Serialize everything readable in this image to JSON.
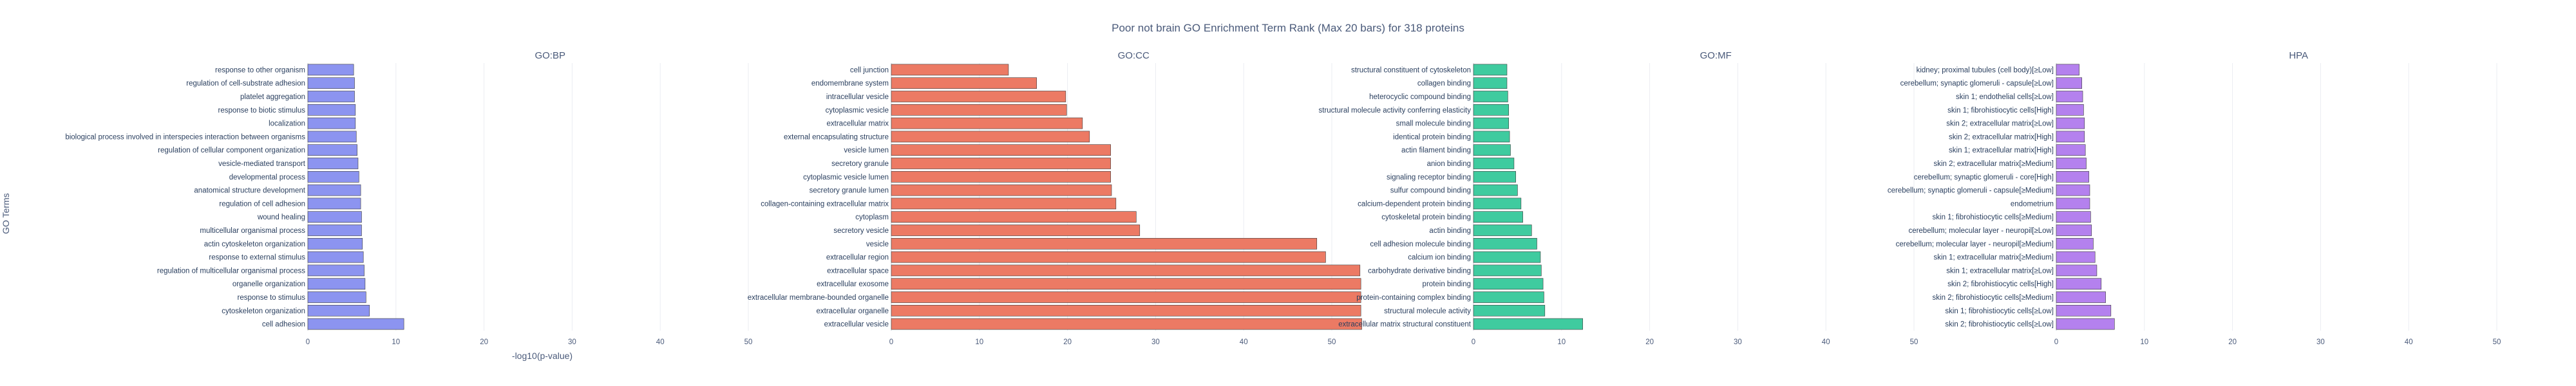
{
  "chart_data": {
    "type": "bar",
    "orientation": "horizontal",
    "title": "Poor not brain GO Enrichment Term Rank (Max 20 bars) for 318 proteins",
    "xlabel": "-log10(p-value)",
    "ylabel": "GO Terms",
    "xlim": [
      0,
      55
    ],
    "xticks": [
      0,
      10,
      20,
      30,
      40,
      50
    ],
    "grid": true,
    "panels": [
      {
        "name": "GO:BP",
        "color": "#8c94f0",
        "categories": [
          "response to other organism",
          "regulation of cell-substrate adhesion",
          "platelet aggregation",
          "response to biotic stimulus",
          "localization",
          "biological process involved in interspecies interaction between organisms",
          "regulation of cellular component organization",
          "vesicle-mediated transport",
          "developmental process",
          "anatomical structure development",
          "regulation of cell adhesion",
          "wound healing",
          "multicellular organismal process",
          "actin cytoskeleton organization",
          "response to external stimulus",
          "regulation of multicellular organismal process",
          "organelle organization",
          "response to stimulus",
          "cytoskeleton organization",
          "cell adhesion"
        ],
        "values": [
          5.2,
          5.3,
          5.3,
          5.4,
          5.4,
          5.5,
          5.6,
          5.7,
          5.8,
          6.0,
          6.0,
          6.1,
          6.1,
          6.2,
          6.3,
          6.4,
          6.5,
          6.6,
          7.0,
          10.9
        ]
      },
      {
        "name": "GO:CC",
        "color": "#ec7a64",
        "categories": [
          "cell junction",
          "endomembrane system",
          "intracellular vesicle",
          "cytoplasmic vesicle",
          "extracellular matrix",
          "external encapsulating structure",
          "vesicle lumen",
          "secretory granule",
          "cytoplasmic vesicle lumen",
          "secretory granule lumen",
          "collagen-containing extracellular matrix",
          "cytoplasm",
          "secretory vesicle",
          "vesicle",
          "extracellular region",
          "extracellular space",
          "extracellular exosome",
          "extracellular membrane-bounded organelle",
          "extracellular organelle",
          "extracellular vesicle"
        ],
        "values": [
          13.3,
          16.5,
          19.8,
          19.9,
          21.7,
          22.5,
          24.9,
          24.9,
          24.9,
          25.0,
          25.5,
          27.8,
          28.2,
          48.3,
          49.3,
          53.2,
          53.3,
          53.3,
          53.3,
          53.4
        ]
      },
      {
        "name": "GO:MF",
        "color": "#3fcb9f",
        "categories": [
          "structural constituent of cytoskeleton",
          "collagen binding",
          "heterocyclic compound binding",
          "structural molecule activity conferring elasticity",
          "small molecule binding",
          "identical protein binding",
          "actin filament binding",
          "anion binding",
          "signaling receptor binding",
          "sulfur compound binding",
          "calcium-dependent protein binding",
          "cytoskeletal protein binding",
          "actin binding",
          "cell adhesion molecule binding",
          "calcium ion binding",
          "carbohydrate derivative binding",
          "protein binding",
          "protein-containing complex binding",
          "structural molecule activity",
          "extracellular matrix structural constituent"
        ],
        "values": [
          3.8,
          3.8,
          3.9,
          4.0,
          4.0,
          4.1,
          4.2,
          4.6,
          4.8,
          5.0,
          5.4,
          5.6,
          6.6,
          7.2,
          7.6,
          7.7,
          7.9,
          8.0,
          8.1,
          12.4
        ]
      },
      {
        "name": "HPA",
        "color": "#b481ee",
        "categories": [
          "kidney; proximal tubules (cell body)[≥Low]",
          "cerebellum; synaptic glomeruli - capsule[≥Low]",
          "skin 1; endothelial cells[≥Low]",
          "skin 1; fibrohistiocytic cells[High]",
          "skin 2; extracellular matrix[≥Low]",
          "skin 2; extracellular matrix[High]",
          "skin 1; extracellular matrix[High]",
          "skin 2; extracellular matrix[≥Medium]",
          "cerebellum; synaptic glomeruli - core[High]",
          "cerebellum; synaptic glomeruli - capsule[≥Medium]",
          "endometrium",
          "skin 1; fibrohistiocytic cells[≥Medium]",
          "cerebellum; molecular layer - neuropil[≥Low]",
          "cerebellum; molecular layer - neuropil[≥Medium]",
          "skin 1; extracellular matrix[≥Medium]",
          "skin 1; extracellular matrix[≥Low]",
          "skin 2; fibrohistiocytic cells[High]",
          "skin 2; fibrohistiocytic cells[≥Medium]",
          "skin 1; fibrohistiocytic cells[≥Low]",
          "skin 2; fibrohistiocytic cells[≥Low]"
        ],
        "values": [
          2.6,
          2.9,
          3.0,
          3.1,
          3.2,
          3.2,
          3.3,
          3.4,
          3.7,
          3.8,
          3.8,
          3.9,
          4.0,
          4.2,
          4.4,
          4.6,
          5.1,
          5.6,
          6.2,
          6.6
        ]
      }
    ]
  }
}
